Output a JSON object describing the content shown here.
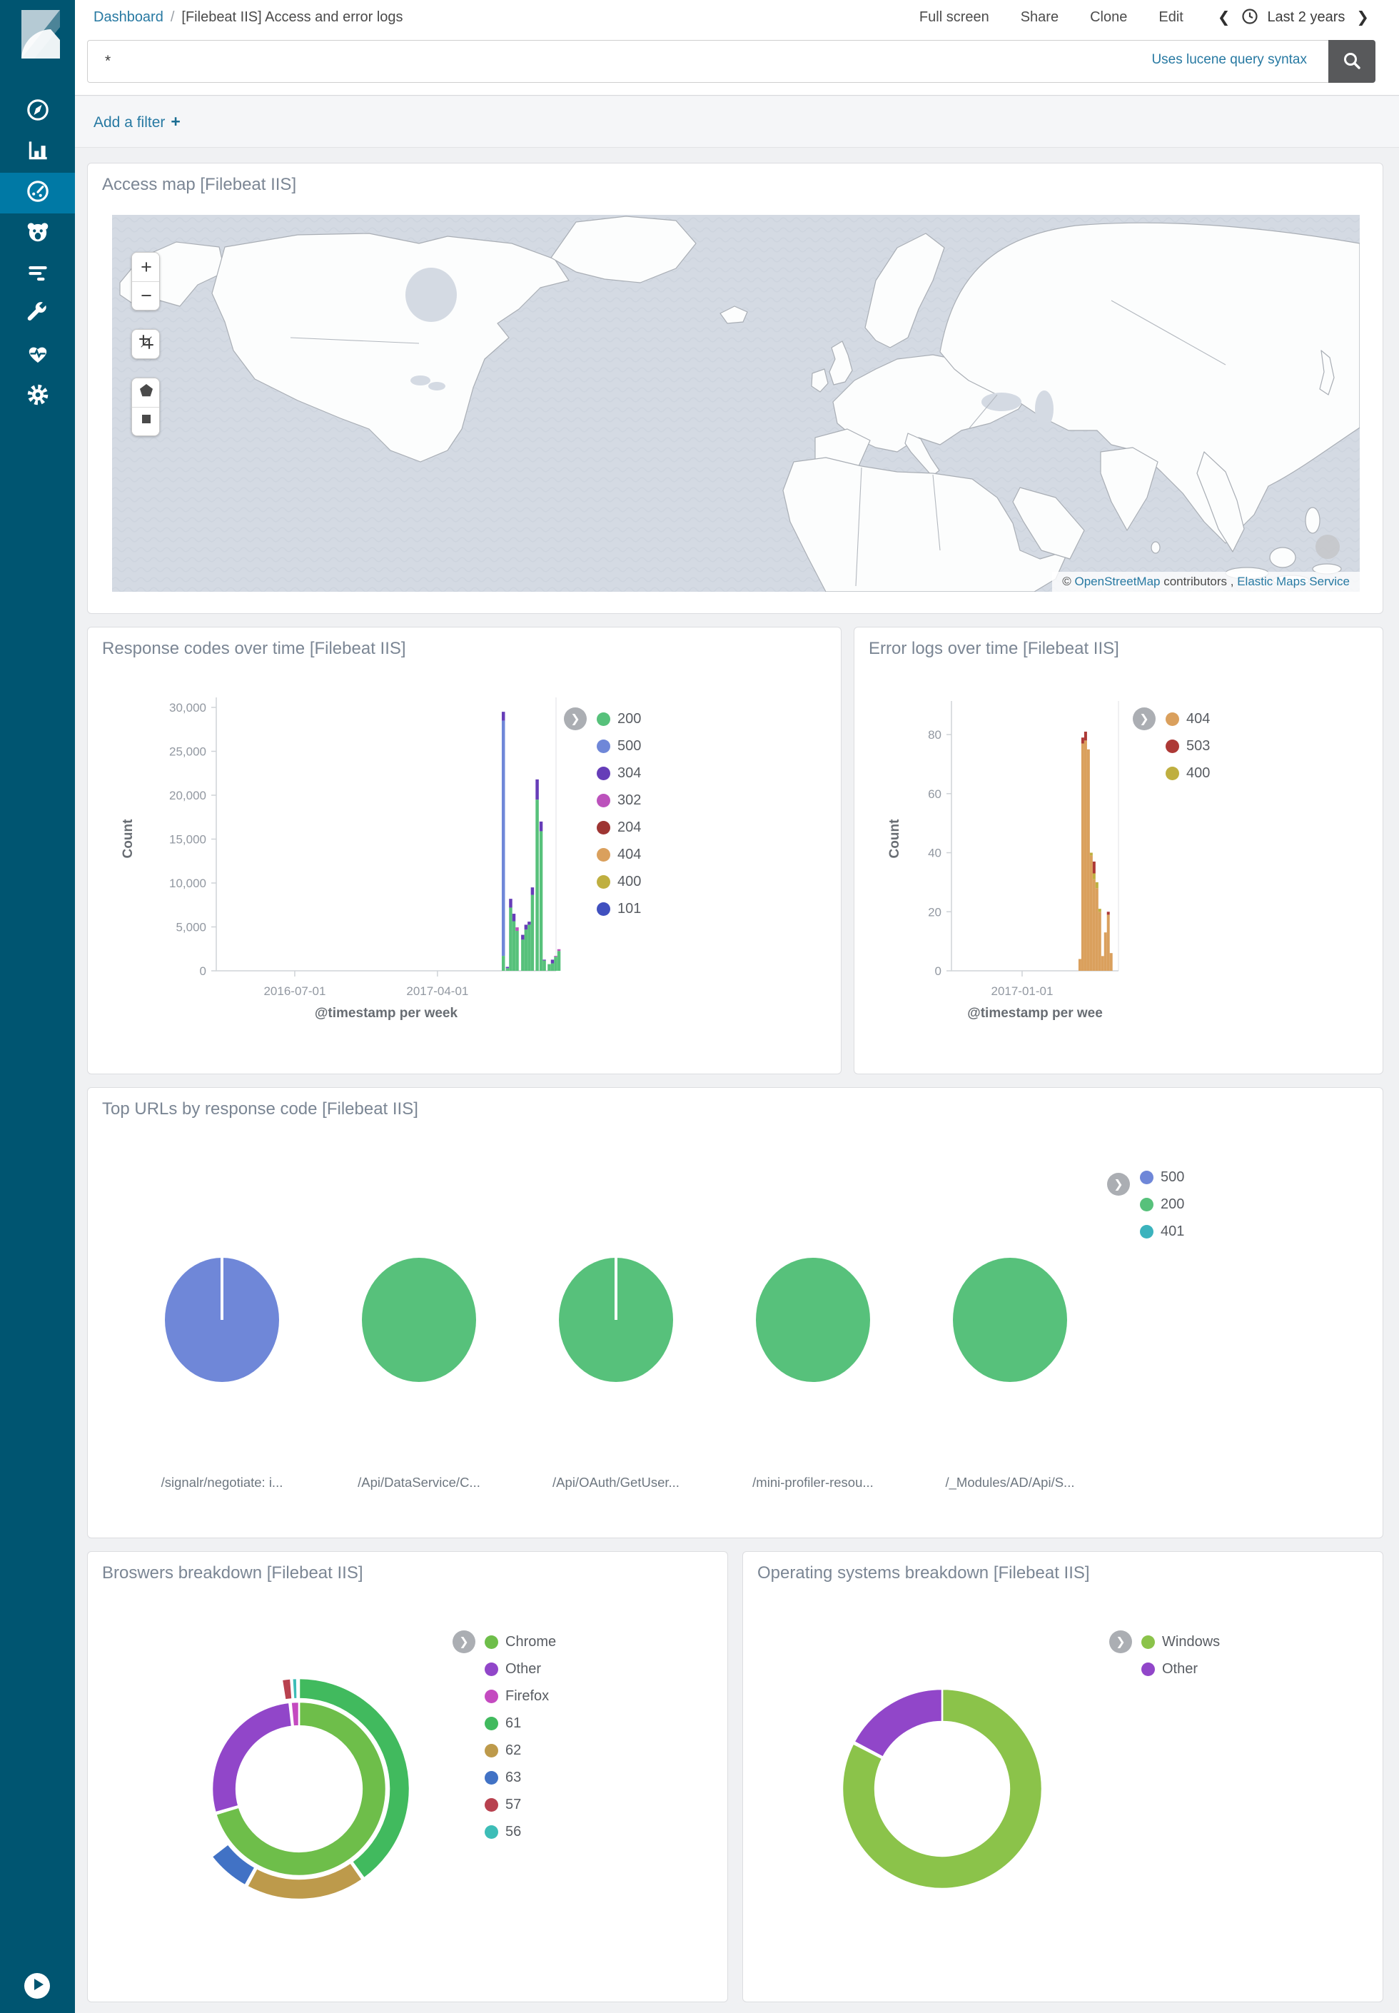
{
  "app": {
    "name": "Kibana"
  },
  "colors": {
    "accent": "#0079a5",
    "sidebar": "#005571",
    "link": "#2779a2"
  },
  "sidebar": {
    "items": [
      {
        "id": "discover",
        "icon": "compass-icon"
      },
      {
        "id": "visualize",
        "icon": "bar-chart-icon"
      },
      {
        "id": "dashboard",
        "icon": "gauge-icon",
        "active": true
      },
      {
        "id": "timelion",
        "icon": "lion-face-icon"
      },
      {
        "id": "logs",
        "icon": "log-lines-icon"
      },
      {
        "id": "dev-tools",
        "icon": "wrench-icon"
      },
      {
        "id": "monitoring",
        "icon": "heartbeat-icon"
      },
      {
        "id": "management",
        "icon": "gear-icon"
      }
    ],
    "collapse_icon": "play-icon"
  },
  "header": {
    "breadcrumb": {
      "root": "Dashboard",
      "separator": "/",
      "current": "[Filebeat IIS] Access and error logs"
    },
    "menu": [
      "Full screen",
      "Share",
      "Clone",
      "Edit"
    ],
    "time_picker": {
      "prev": "❮",
      "clock_icon": "clock-icon",
      "label": "Last 2 years",
      "next": "❯"
    }
  },
  "search": {
    "value": "*",
    "hint": "Uses lucene query syntax",
    "button_icon": "search-icon"
  },
  "filter_bar": {
    "label": "Add a filter",
    "plus": "+"
  },
  "map_panel": {
    "title": "Access map [Filebeat IIS]",
    "controls": {
      "zoom_in": "+",
      "zoom_out": "−",
      "crop_icon": "crop-icon",
      "polygon_icon": "polygon-icon",
      "rectangle_icon": "rectangle-icon"
    },
    "attribution": {
      "prefix": "© ",
      "osm_link": "OpenStreetMap",
      "middle": " contributors , ",
      "ems_link": "Elastic Maps Service"
    }
  },
  "chart_data": [
    {
      "id": "response_codes",
      "type": "bar",
      "stacked": true,
      "title": "Response codes over time [Filebeat IIS]",
      "xlabel": "@timestamp per week",
      "ylabel": "Count",
      "ylim": [
        0,
        30000
      ],
      "grid": false,
      "legend_position": "right",
      "y_ticks": [
        {
          "v": 0,
          "label": "0"
        },
        {
          "v": 5000,
          "label": "5,000"
        },
        {
          "v": 10000,
          "label": "10,000"
        },
        {
          "v": 15000,
          "label": "15,000"
        },
        {
          "v": 20000,
          "label": "20,000"
        },
        {
          "v": 25000,
          "label": "25,000"
        },
        {
          "v": 30000,
          "label": "30,000"
        }
      ],
      "x_ticks": [
        {
          "pos": 0.231,
          "label": "2016-07-01"
        },
        {
          "pos": 0.651,
          "label": "2017-04-01"
        }
      ],
      "legend": [
        {
          "label": "200",
          "color": "#57c17b"
        },
        {
          "label": "500",
          "color": "#6f87d8"
        },
        {
          "label": "304",
          "color": "#663db8"
        },
        {
          "label": "302",
          "color": "#bc52bc"
        },
        {
          "label": "204",
          "color": "#9e3533"
        },
        {
          "label": "404",
          "color": "#daa05d"
        },
        {
          "label": "400",
          "color": "#bfaf40"
        },
        {
          "label": "101",
          "color": "#4050bf"
        }
      ],
      "bars": [
        {
          "pos": 0.845,
          "stacks": [
            [
              "200",
              1700
            ],
            [
              "500",
              26800
            ],
            [
              "304",
              1000
            ]
          ]
        },
        {
          "pos": 0.857,
          "stacks": [
            [
              "200",
              300
            ],
            [
              "304",
              150
            ]
          ]
        },
        {
          "pos": 0.8665,
          "stacks": [
            [
              "200",
              7200
            ],
            [
              "304",
              1000
            ]
          ]
        },
        {
          "pos": 0.876,
          "stacks": [
            [
              "200",
              5650
            ],
            [
              "304",
              850
            ]
          ]
        },
        {
          "pos": 0.8855,
          "stacks": [
            [
              "200",
              4550
            ],
            [
              "302",
              400
            ]
          ]
        },
        {
          "pos": 0.902,
          "stacks": [
            [
              "200",
              3550
            ],
            [
              "304",
              550
            ]
          ]
        },
        {
          "pos": 0.9115,
          "stacks": [
            [
              "200",
              4700
            ],
            [
              "304",
              550
            ]
          ]
        },
        {
          "pos": 0.921,
          "stacks": [
            [
              "200",
              5250
            ],
            [
              "304",
              350
            ]
          ]
        },
        {
          "pos": 0.9305,
          "stacks": [
            [
              "200",
              8650
            ],
            [
              "304",
              850
            ]
          ]
        },
        {
          "pos": 0.9445,
          "stacks": [
            [
              "200",
              19500
            ],
            [
              "304",
              2300
            ]
          ]
        },
        {
          "pos": 0.956,
          "stacks": [
            [
              "200",
              15900
            ],
            [
              "304",
              1100
            ]
          ]
        },
        {
          "pos": 0.9655,
          "stacks": [
            [
              "200",
              1170
            ],
            [
              "304",
              100
            ]
          ]
        },
        {
          "pos": 0.98,
          "stacks": [
            [
              "200",
              760
            ]
          ]
        },
        {
          "pos": 0.9895,
          "stacks": [
            [
              "200",
              850
            ],
            [
              "304",
              420
            ]
          ]
        },
        {
          "pos": 0.999,
          "stacks": [
            [
              "200",
              1600
            ],
            [
              "302",
              100
            ]
          ]
        },
        {
          "pos": 1.0085,
          "stacks": [
            [
              "200",
              2260
            ],
            [
              "302",
              200
            ]
          ]
        }
      ]
    },
    {
      "id": "error_logs",
      "type": "bar",
      "stacked": true,
      "title": "Error logs over time [Filebeat IIS]",
      "xlabel": "@timestamp per wee",
      "ylabel": "Count",
      "ylim": [
        0,
        88
      ],
      "grid": false,
      "legend_position": "right",
      "y_ticks": [
        {
          "v": 0,
          "label": "0"
        },
        {
          "v": 20,
          "label": "20"
        },
        {
          "v": 40,
          "label": "40"
        },
        {
          "v": 60,
          "label": "60"
        },
        {
          "v": 80,
          "label": "80"
        }
      ],
      "x_ticks": [
        {
          "pos": 0.423,
          "label": "2017-01-01"
        }
      ],
      "legend": [
        {
          "label": "404",
          "color": "#daa05d"
        },
        {
          "label": "503",
          "color": "#ad3936"
        },
        {
          "label": "400",
          "color": "#bfaf40"
        }
      ],
      "bars": [
        {
          "pos": 0.769,
          "stacks": [
            [
              "404",
              4
            ]
          ]
        },
        {
          "pos": 0.786,
          "stacks": [
            [
              "404",
              77
            ],
            [
              "503",
              2
            ]
          ]
        },
        {
          "pos": 0.803,
          "stacks": [
            [
              "404",
              78
            ],
            [
              "503",
              3
            ]
          ]
        },
        {
          "pos": 0.82,
          "stacks": [
            [
              "404",
              75
            ]
          ]
        },
        {
          "pos": 0.837,
          "stacks": [
            [
              "404",
              39
            ],
            [
              "400",
              1
            ]
          ]
        },
        {
          "pos": 0.854,
          "stacks": [
            [
              "404",
              31
            ],
            [
              "400",
              2
            ],
            [
              "503",
              4
            ]
          ]
        },
        {
          "pos": 0.871,
          "stacks": [
            [
              "404",
              28
            ],
            [
              "400",
              2
            ]
          ]
        },
        {
          "pos": 0.888,
          "stacks": [
            [
              "404",
              20
            ],
            [
              "400",
              1
            ]
          ]
        },
        {
          "pos": 0.905,
          "stacks": [
            [
              "404",
              5
            ]
          ]
        },
        {
          "pos": 0.922,
          "stacks": [
            [
              "404",
              13
            ]
          ]
        },
        {
          "pos": 0.939,
          "stacks": [
            [
              "404",
              19
            ],
            [
              "503",
              1
            ]
          ]
        },
        {
          "pos": 0.956,
          "stacks": [
            [
              "404",
              6
            ]
          ]
        }
      ]
    },
    {
      "id": "top_urls",
      "type": "pie",
      "title": "Top URLs by response code [Filebeat IIS]",
      "legend_position": "right",
      "legend": [
        {
          "label": "500",
          "color": "#6f87d8"
        },
        {
          "label": "200",
          "color": "#57c17b"
        },
        {
          "label": "401",
          "color": "#3bb3bd"
        }
      ],
      "pies": [
        {
          "label": "/signalr/negotiate: i...",
          "slices": [
            {
              "code": "500",
              "fraction": 1
            }
          ],
          "divider": true
        },
        {
          "label": "/Api/DataService/C...",
          "slices": [
            {
              "code": "200",
              "fraction": 1
            }
          ],
          "divider": false
        },
        {
          "label": "/Api/OAuth/GetUser...",
          "slices": [
            {
              "code": "200",
              "fraction": 1
            }
          ],
          "divider": true
        },
        {
          "label": "/mini-profiler-resou...",
          "slices": [
            {
              "code": "200",
              "fraction": 1
            }
          ],
          "divider": false
        },
        {
          "label": "/_Modules/AD/Api/S...",
          "slices": [
            {
              "code": "200",
              "fraction": 1
            }
          ],
          "divider": false
        }
      ]
    },
    {
      "id": "browsers",
      "type": "donut",
      "title": "Broswers breakdown [Filebeat IIS]",
      "legend_position": "right",
      "legend": [
        {
          "label": "Chrome",
          "color": "#6ebe4a"
        },
        {
          "label": "Other",
          "color": "#9146c9"
        },
        {
          "label": "Firefox",
          "color": "#c44ac0"
        },
        {
          "label": "61",
          "color": "#41ba5e"
        },
        {
          "label": "62",
          "color": "#bd9a4b"
        },
        {
          "label": "63",
          "color": "#4172c5"
        },
        {
          "label": "57",
          "color": "#b8414f"
        },
        {
          "label": "56",
          "color": "#3dbdb7"
        }
      ],
      "rings": [
        {
          "r0": 0.567,
          "r1": 0.787,
          "segments": [
            {
              "label": "Chrome",
              "from": 0,
              "to": 0.703
            },
            {
              "label": "Other",
              "from": 0.706,
              "to": 0.982
            },
            {
              "label": "Firefox",
              "from": 0.985,
              "to": 1.0
            }
          ]
        },
        {
          "r0": 0.813,
          "r1": 1.0,
          "segments": [
            {
              "label": "61",
              "from": 0,
              "to": 0.4
            },
            {
              "label": "62",
              "from": 0.403,
              "to": 0.578
            },
            {
              "label": "63",
              "from": 0.581,
              "to": 0.645
            },
            {
              "label": "57",
              "from": 0.975,
              "to": 0.988
            },
            {
              "label": "56",
              "from": 0.99,
              "to": 0.997
            }
          ]
        }
      ]
    },
    {
      "id": "os",
      "type": "donut",
      "title": "Operating systems breakdown [Filebeat IIS]",
      "legend_position": "right",
      "legend": [
        {
          "label": "Windows",
          "color": "#8bc34a"
        },
        {
          "label": "Other",
          "color": "#9146c9"
        }
      ],
      "rings": [
        {
          "r0": 0.671,
          "r1": 1.0,
          "segments": [
            {
              "label": "Windows",
              "from": 0,
              "to": 0.825
            },
            {
              "label": "Other",
              "from": 0.828,
              "to": 1.0
            }
          ]
        }
      ]
    }
  ]
}
